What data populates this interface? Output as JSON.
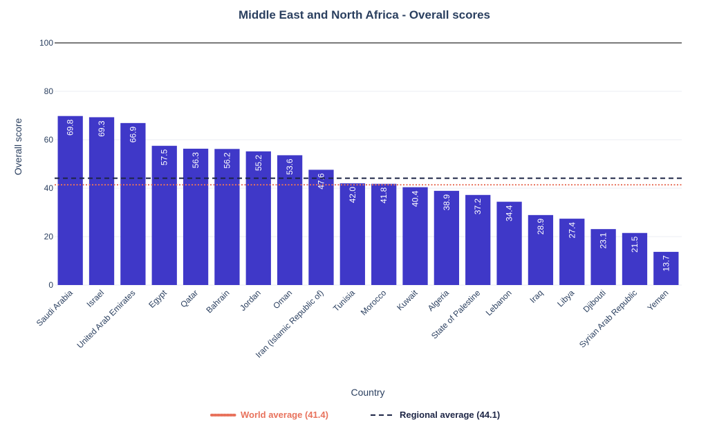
{
  "chart_data": {
    "type": "bar",
    "title": "Middle East and North Africa - Overall scores",
    "xlabel": "Country",
    "ylabel": "Overall score",
    "ylim": [
      0,
      100
    ],
    "yticks": [
      "0",
      "20",
      "40",
      "60",
      "80",
      "100"
    ],
    "grid": true,
    "legend_placement": "bottom-center",
    "categories": [
      "Saudi Arabia",
      "Israel",
      "United Arab Emirates",
      "Egypt",
      "Qatar",
      "Bahrain",
      "Jordan",
      "Oman",
      "Iran (Islamic Republic of)",
      "Tunisia",
      "Morocco",
      "Kuwait",
      "Algeria",
      "State of Palestine",
      "Lebanon",
      "Iraq",
      "Libya",
      "Djibouti",
      "Syrian Arab Republic",
      "Yemen"
    ],
    "values": [
      69.8,
      69.3,
      66.9,
      57.5,
      56.3,
      56.2,
      55.2,
      53.6,
      47.6,
      42.0,
      41.8,
      40.4,
      38.9,
      37.2,
      34.4,
      28.9,
      27.4,
      23.1,
      21.5,
      13.7
    ],
    "value_labels": [
      "69.8",
      "69.3",
      "66.9",
      "57.5",
      "56.3",
      "56.2",
      "55.2",
      "53.6",
      "47.6",
      "42.0",
      "41.8",
      "40.4",
      "38.9",
      "37.2",
      "34.4",
      "28.9",
      "27.4",
      "23.1",
      "21.5",
      "13.7"
    ],
    "bar_color": "#3f38c8",
    "reference_lines": [
      {
        "name": "World average (41.4)",
        "value": 41.4,
        "color": "#e8725c",
        "style": "dotted"
      },
      {
        "name": "Regional average (44.1)",
        "value": 44.1,
        "color": "#1d2545",
        "style": "dashed"
      }
    ]
  }
}
